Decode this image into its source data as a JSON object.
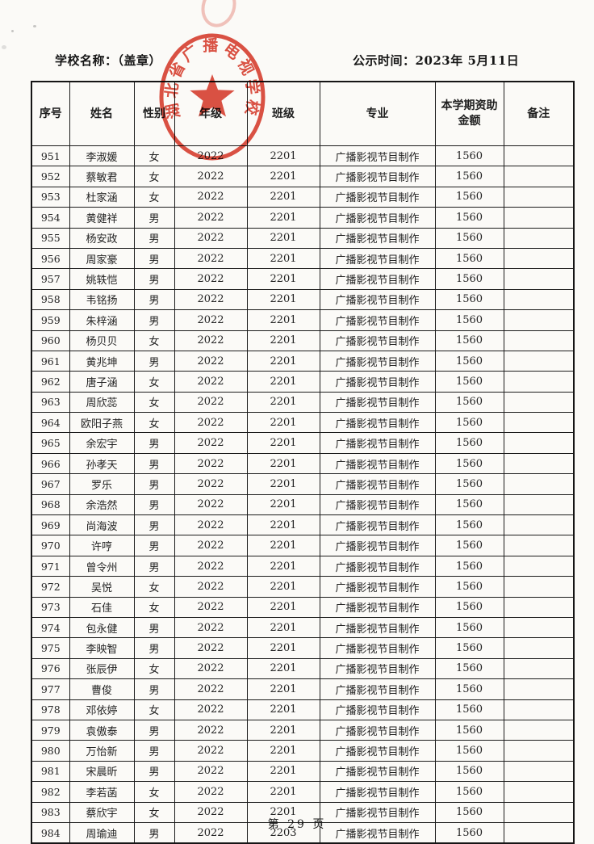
{
  "page": {
    "school_label": "学校名称：（盖章）",
    "publish_label": "公示时间：2023年 5月11日",
    "footer": "第 29 页",
    "stamp": {
      "text": "湖北省广播电视学校",
      "color": "#d93a2b"
    }
  },
  "table": {
    "headers": [
      "序号",
      "姓名",
      "性别",
      "年级",
      "班级",
      "专业",
      "本学期资助金额",
      "备注"
    ],
    "field_names": [
      "xuhao",
      "xingming",
      "xingbie",
      "nianji",
      "banji",
      "zhuanye",
      "zizhu-jine",
      "beizhu"
    ],
    "rows": [
      [
        "951",
        "李淑媛",
        "女",
        "2022",
        "2201",
        "广播影视节目制作",
        "1560",
        ""
      ],
      [
        "952",
        "蔡敏君",
        "女",
        "2022",
        "2201",
        "广播影视节目制作",
        "1560",
        ""
      ],
      [
        "953",
        "杜家涵",
        "女",
        "2022",
        "2201",
        "广播影视节目制作",
        "1560",
        ""
      ],
      [
        "954",
        "黄健祥",
        "男",
        "2022",
        "2201",
        "广播影视节目制作",
        "1560",
        ""
      ],
      [
        "955",
        "杨安政",
        "男",
        "2022",
        "2201",
        "广播影视节目制作",
        "1560",
        ""
      ],
      [
        "956",
        "周家豪",
        "男",
        "2022",
        "2201",
        "广播影视节目制作",
        "1560",
        ""
      ],
      [
        "957",
        "姚轶恺",
        "男",
        "2022",
        "2201",
        "广播影视节目制作",
        "1560",
        ""
      ],
      [
        "958",
        "韦铭扬",
        "男",
        "2022",
        "2201",
        "广播影视节目制作",
        "1560",
        ""
      ],
      [
        "959",
        "朱梓涵",
        "男",
        "2022",
        "2201",
        "广播影视节目制作",
        "1560",
        ""
      ],
      [
        "960",
        "杨贝贝",
        "女",
        "2022",
        "2201",
        "广播影视节目制作",
        "1560",
        ""
      ],
      [
        "961",
        "黄兆坤",
        "男",
        "2022",
        "2201",
        "广播影视节目制作",
        "1560",
        ""
      ],
      [
        "962",
        "唐子涵",
        "女",
        "2022",
        "2201",
        "广播影视节目制作",
        "1560",
        ""
      ],
      [
        "963",
        "周欣蕊",
        "女",
        "2022",
        "2201",
        "广播影视节目制作",
        "1560",
        ""
      ],
      [
        "964",
        "欧阳子燕",
        "女",
        "2022",
        "2201",
        "广播影视节目制作",
        "1560",
        ""
      ],
      [
        "965",
        "余宏宇",
        "男",
        "2022",
        "2201",
        "广播影视节目制作",
        "1560",
        ""
      ],
      [
        "966",
        "孙孝天",
        "男",
        "2022",
        "2201",
        "广播影视节目制作",
        "1560",
        ""
      ],
      [
        "967",
        "罗乐",
        "男",
        "2022",
        "2201",
        "广播影视节目制作",
        "1560",
        ""
      ],
      [
        "968",
        "余浩然",
        "男",
        "2022",
        "2201",
        "广播影视节目制作",
        "1560",
        ""
      ],
      [
        "969",
        "尚海波",
        "男",
        "2022",
        "2201",
        "广播影视节目制作",
        "1560",
        ""
      ],
      [
        "970",
        "许哼",
        "男",
        "2022",
        "2201",
        "广播影视节目制作",
        "1560",
        ""
      ],
      [
        "971",
        "曾令州",
        "男",
        "2022",
        "2201",
        "广播影视节目制作",
        "1560",
        ""
      ],
      [
        "972",
        "吴悦",
        "女",
        "2022",
        "2201",
        "广播影视节目制作",
        "1560",
        ""
      ],
      [
        "973",
        "石佳",
        "女",
        "2022",
        "2201",
        "广播影视节目制作",
        "1560",
        ""
      ],
      [
        "974",
        "包永健",
        "男",
        "2022",
        "2201",
        "广播影视节目制作",
        "1560",
        ""
      ],
      [
        "975",
        "李映智",
        "男",
        "2022",
        "2201",
        "广播影视节目制作",
        "1560",
        ""
      ],
      [
        "976",
        "张辰伊",
        "女",
        "2022",
        "2201",
        "广播影视节目制作",
        "1560",
        ""
      ],
      [
        "977",
        "曹俊",
        "男",
        "2022",
        "2201",
        "广播影视节目制作",
        "1560",
        ""
      ],
      [
        "978",
        "邓依婷",
        "女",
        "2022",
        "2201",
        "广播影视节目制作",
        "1560",
        ""
      ],
      [
        "979",
        "袁傲泰",
        "男",
        "2022",
        "2201",
        "广播影视节目制作",
        "1560",
        ""
      ],
      [
        "980",
        "万怡新",
        "男",
        "2022",
        "2201",
        "广播影视节目制作",
        "1560",
        ""
      ],
      [
        "981",
        "宋晨昕",
        "男",
        "2022",
        "2201",
        "广播影视节目制作",
        "1560",
        ""
      ],
      [
        "982",
        "李若菡",
        "女",
        "2022",
        "2201",
        "广播影视节目制作",
        "1560",
        ""
      ],
      [
        "983",
        "蔡欣宇",
        "女",
        "2022",
        "2201",
        "广播影视节目制作",
        "1560",
        ""
      ],
      [
        "984",
        "周瑜迪",
        "男",
        "2022",
        "2203",
        "广播影视节目制作",
        "1560",
        ""
      ]
    ]
  }
}
